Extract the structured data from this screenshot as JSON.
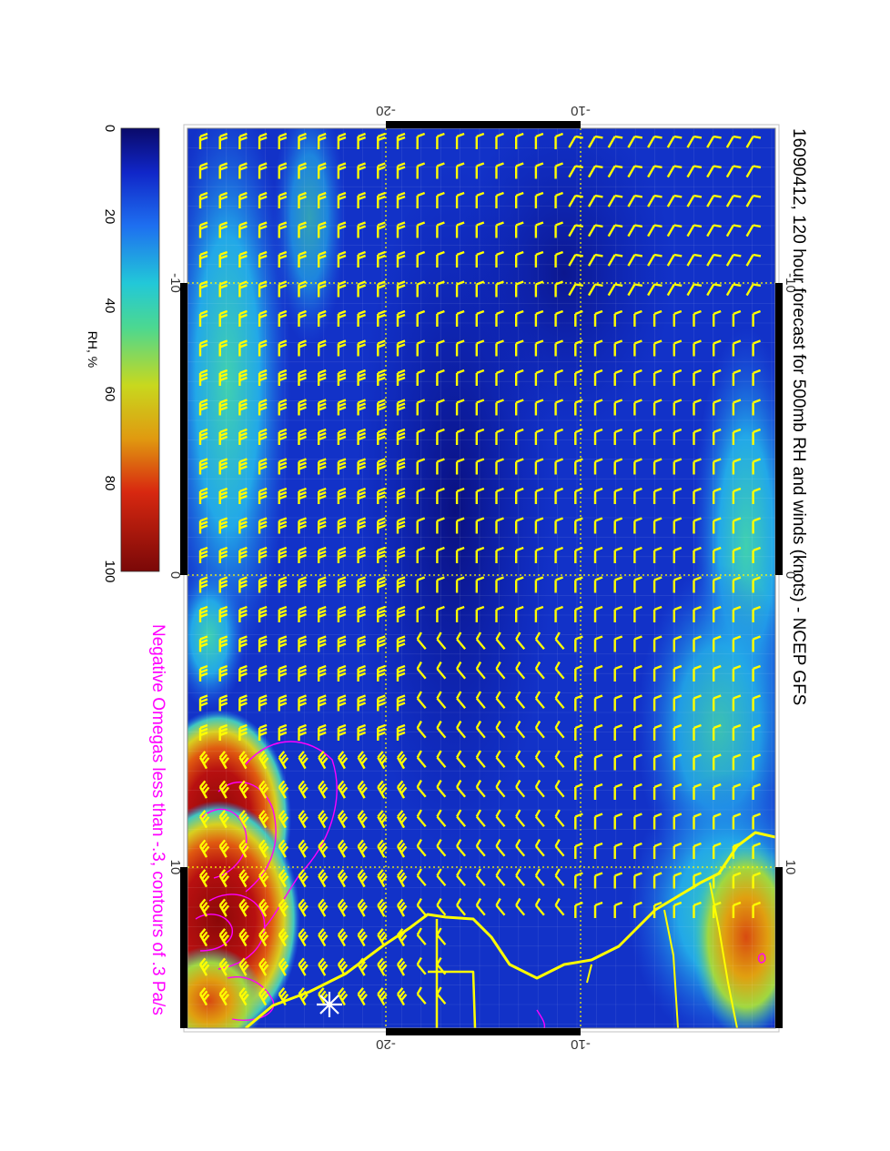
{
  "title": "16090412, 120 hour forecast for 500mb RH and winds (knots) - NCEP GFS",
  "subtitle": "Negative Omegas less than -.3, contours of .3 Pa/s",
  "colorbar": {
    "label": "RH, %",
    "ticks": [
      "0",
      "20",
      "40",
      "60",
      "80",
      "100"
    ],
    "range": [
      0,
      100
    ]
  },
  "axes": {
    "lat_ticks_top": [
      "-20",
      "-10"
    ],
    "lat_ticks_bottom": [
      "-20",
      "-10"
    ],
    "lon_ticks_left": [
      "-10",
      "0",
      "10"
    ],
    "lon_ticks_right": [
      "-10",
      "0",
      "10"
    ]
  },
  "colors": {
    "wind_barbs": "#ffff00",
    "coastline": "#ffff00",
    "omega_contours": "#ff00ff",
    "subtitle": "#ff00ff",
    "gridlines": "#ffff00"
  },
  "icons": {
    "marker": "asterisk-marker-icon"
  }
}
